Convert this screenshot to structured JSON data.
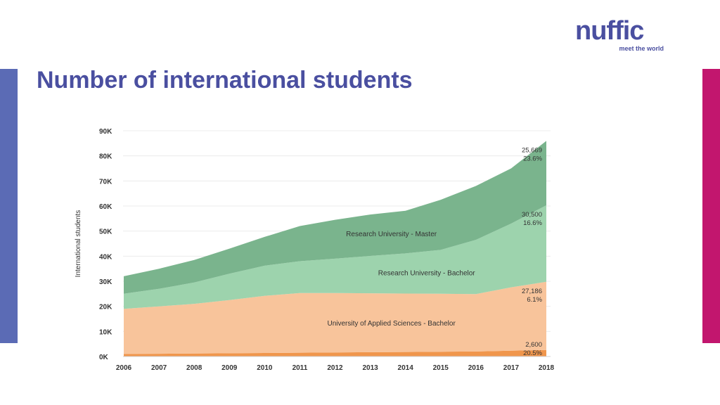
{
  "logo": {
    "word": "nuffic",
    "tagline": "meet the world"
  },
  "title": "Number of international students",
  "colors": {
    "left_bar": "#5b6bb5",
    "right_bar": "#c2166e",
    "title": "#4a4fa0"
  },
  "chart_data": {
    "type": "area",
    "stacked": true,
    "x": [
      2006,
      2007,
      2008,
      2009,
      2010,
      2011,
      2012,
      2013,
      2014,
      2015,
      2016,
      2017,
      2018
    ],
    "ylabel": "International students",
    "ylim": [
      0,
      90000
    ],
    "yticks": [
      0,
      10000,
      20000,
      30000,
      40000,
      50000,
      60000,
      70000,
      80000,
      90000
    ],
    "ytick_labels": [
      "0K",
      "10K",
      "20K",
      "30K",
      "40K",
      "50K",
      "60K",
      "70K",
      "80K",
      "90K"
    ],
    "grid": true,
    "series": [
      {
        "name": "",
        "color": "#f0964c",
        "values": [
          1000,
          1100,
          1200,
          1300,
          1400,
          1500,
          1600,
          1700,
          1800,
          1900,
          2000,
          2300,
          2600
        ]
      },
      {
        "name": "University of Applied Sciences - Bachelor",
        "color": "#f8c49b",
        "values": [
          18000,
          18900,
          19800,
          21200,
          22800,
          23800,
          23700,
          23500,
          23300,
          23100,
          22900,
          25300,
          27186
        ]
      },
      {
        "name": "Research University - Bachelor",
        "color": "#9dd3ad",
        "values": [
          6000,
          7000,
          8500,
          10500,
          12000,
          12700,
          13700,
          14900,
          16000,
          17500,
          21600,
          25400,
          30500
        ]
      },
      {
        "name": "Research University - Master",
        "color": "#7ab48d",
        "values": [
          7000,
          8000,
          9000,
          10000,
          11500,
          14000,
          15500,
          16500,
          17000,
          20000,
          21500,
          22000,
          25669
        ]
      }
    ],
    "end_labels": [
      {
        "value": "25,669",
        "pct": "23.6%"
      },
      {
        "value": "30,500",
        "pct": "16.6%"
      },
      {
        "value": "27,186",
        "pct": "6.1%"
      },
      {
        "value": "2,600",
        "pct": "20.5%"
      }
    ]
  }
}
